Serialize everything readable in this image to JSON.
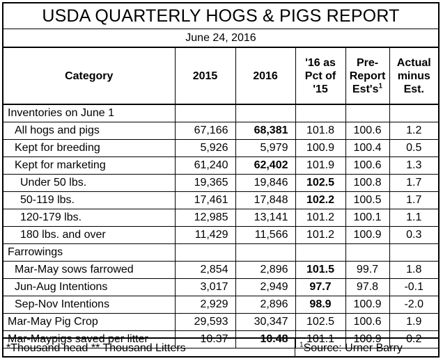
{
  "title": "USDA QUARTERLY HOGS & PIGS REPORT",
  "date": "June 24, 2016",
  "headers": {
    "category": "Category",
    "y2015": "2015",
    "y2016": "2016",
    "pct_line1": "'16 as",
    "pct_line2": "Pct of",
    "pct_line3": "'15",
    "pre_line1": "Pre-",
    "pre_line2": "Report",
    "pre_line3": "Est's",
    "pre_sup": "1",
    "act_line1": "Actual",
    "act_line2": "minus",
    "act_line3": "Est."
  },
  "rows": [
    {
      "label": "Inventories on June 1",
      "y2015": "",
      "y2016": "",
      "pct": "",
      "pre": "",
      "act": ""
    },
    {
      "label": "All hogs and pigs",
      "y2015": "67,166",
      "y2016": "68,381",
      "pct": "101.8",
      "pre": "100.6",
      "act": "1.2"
    },
    {
      "label": "Kept for breeding",
      "y2015": "5,926",
      "y2016": "5,979",
      "pct": "100.9",
      "pre": "100.4",
      "act": "0.5"
    },
    {
      "label": "Kept for marketing",
      "y2015": "61,240",
      "y2016": "62,402",
      "pct": "101.9",
      "pre": "100.6",
      "act": "1.3"
    },
    {
      "label": "Under 50 lbs.",
      "y2015": "19,365",
      "y2016": "19,846",
      "pct": "102.5",
      "pre": "100.8",
      "act": "1.7"
    },
    {
      "label": "50-119 lbs.",
      "y2015": "17,461",
      "y2016": "17,848",
      "pct": "102.2",
      "pre": "100.5",
      "act": "1.7"
    },
    {
      "label": "120-179 lbs.",
      "y2015": "12,985",
      "y2016": "13,141",
      "pct": "101.2",
      "pre": "100.1",
      "act": "1.1"
    },
    {
      "label": "180 lbs. and over",
      "y2015": "11,429",
      "y2016": "11,566",
      "pct": "101.2",
      "pre": "100.9",
      "act": "0.3"
    },
    {
      "label": "Farrowings",
      "y2015": "",
      "y2016": "",
      "pct": "",
      "pre": "",
      "act": ""
    },
    {
      "label": "Mar-May sows farrowed",
      "y2015": "2,854",
      "y2016": "2,896",
      "pct": "101.5",
      "pre": "99.7",
      "act": "1.8"
    },
    {
      "label": "Jun-Aug Intentions",
      "y2015": "3,017",
      "y2016": "2,949",
      "pct": "97.7",
      "pre": "97.8",
      "act": "-0.1"
    },
    {
      "label": "Sep-Nov Intentions",
      "y2015": "2,929",
      "y2016": "2,896",
      "pct": "98.9",
      "pre": "100.9",
      "act": "-2.0"
    },
    {
      "label": "Mar-May Pig Crop",
      "y2015": "29,593",
      "y2016": "30,347",
      "pct": "102.5",
      "pre": "100.6",
      "act": "1.9"
    },
    {
      "label": "Mar-Maypigs saved per litter",
      "y2015": "10.37",
      "y2016": "10.48",
      "pct": "101.1",
      "pre": "100.9",
      "act": "0.2"
    }
  ],
  "footer": {
    "left": "*Thousand head  ** Thousand Litters",
    "right_sup": "1",
    "right": "Source: Urner Barry"
  }
}
